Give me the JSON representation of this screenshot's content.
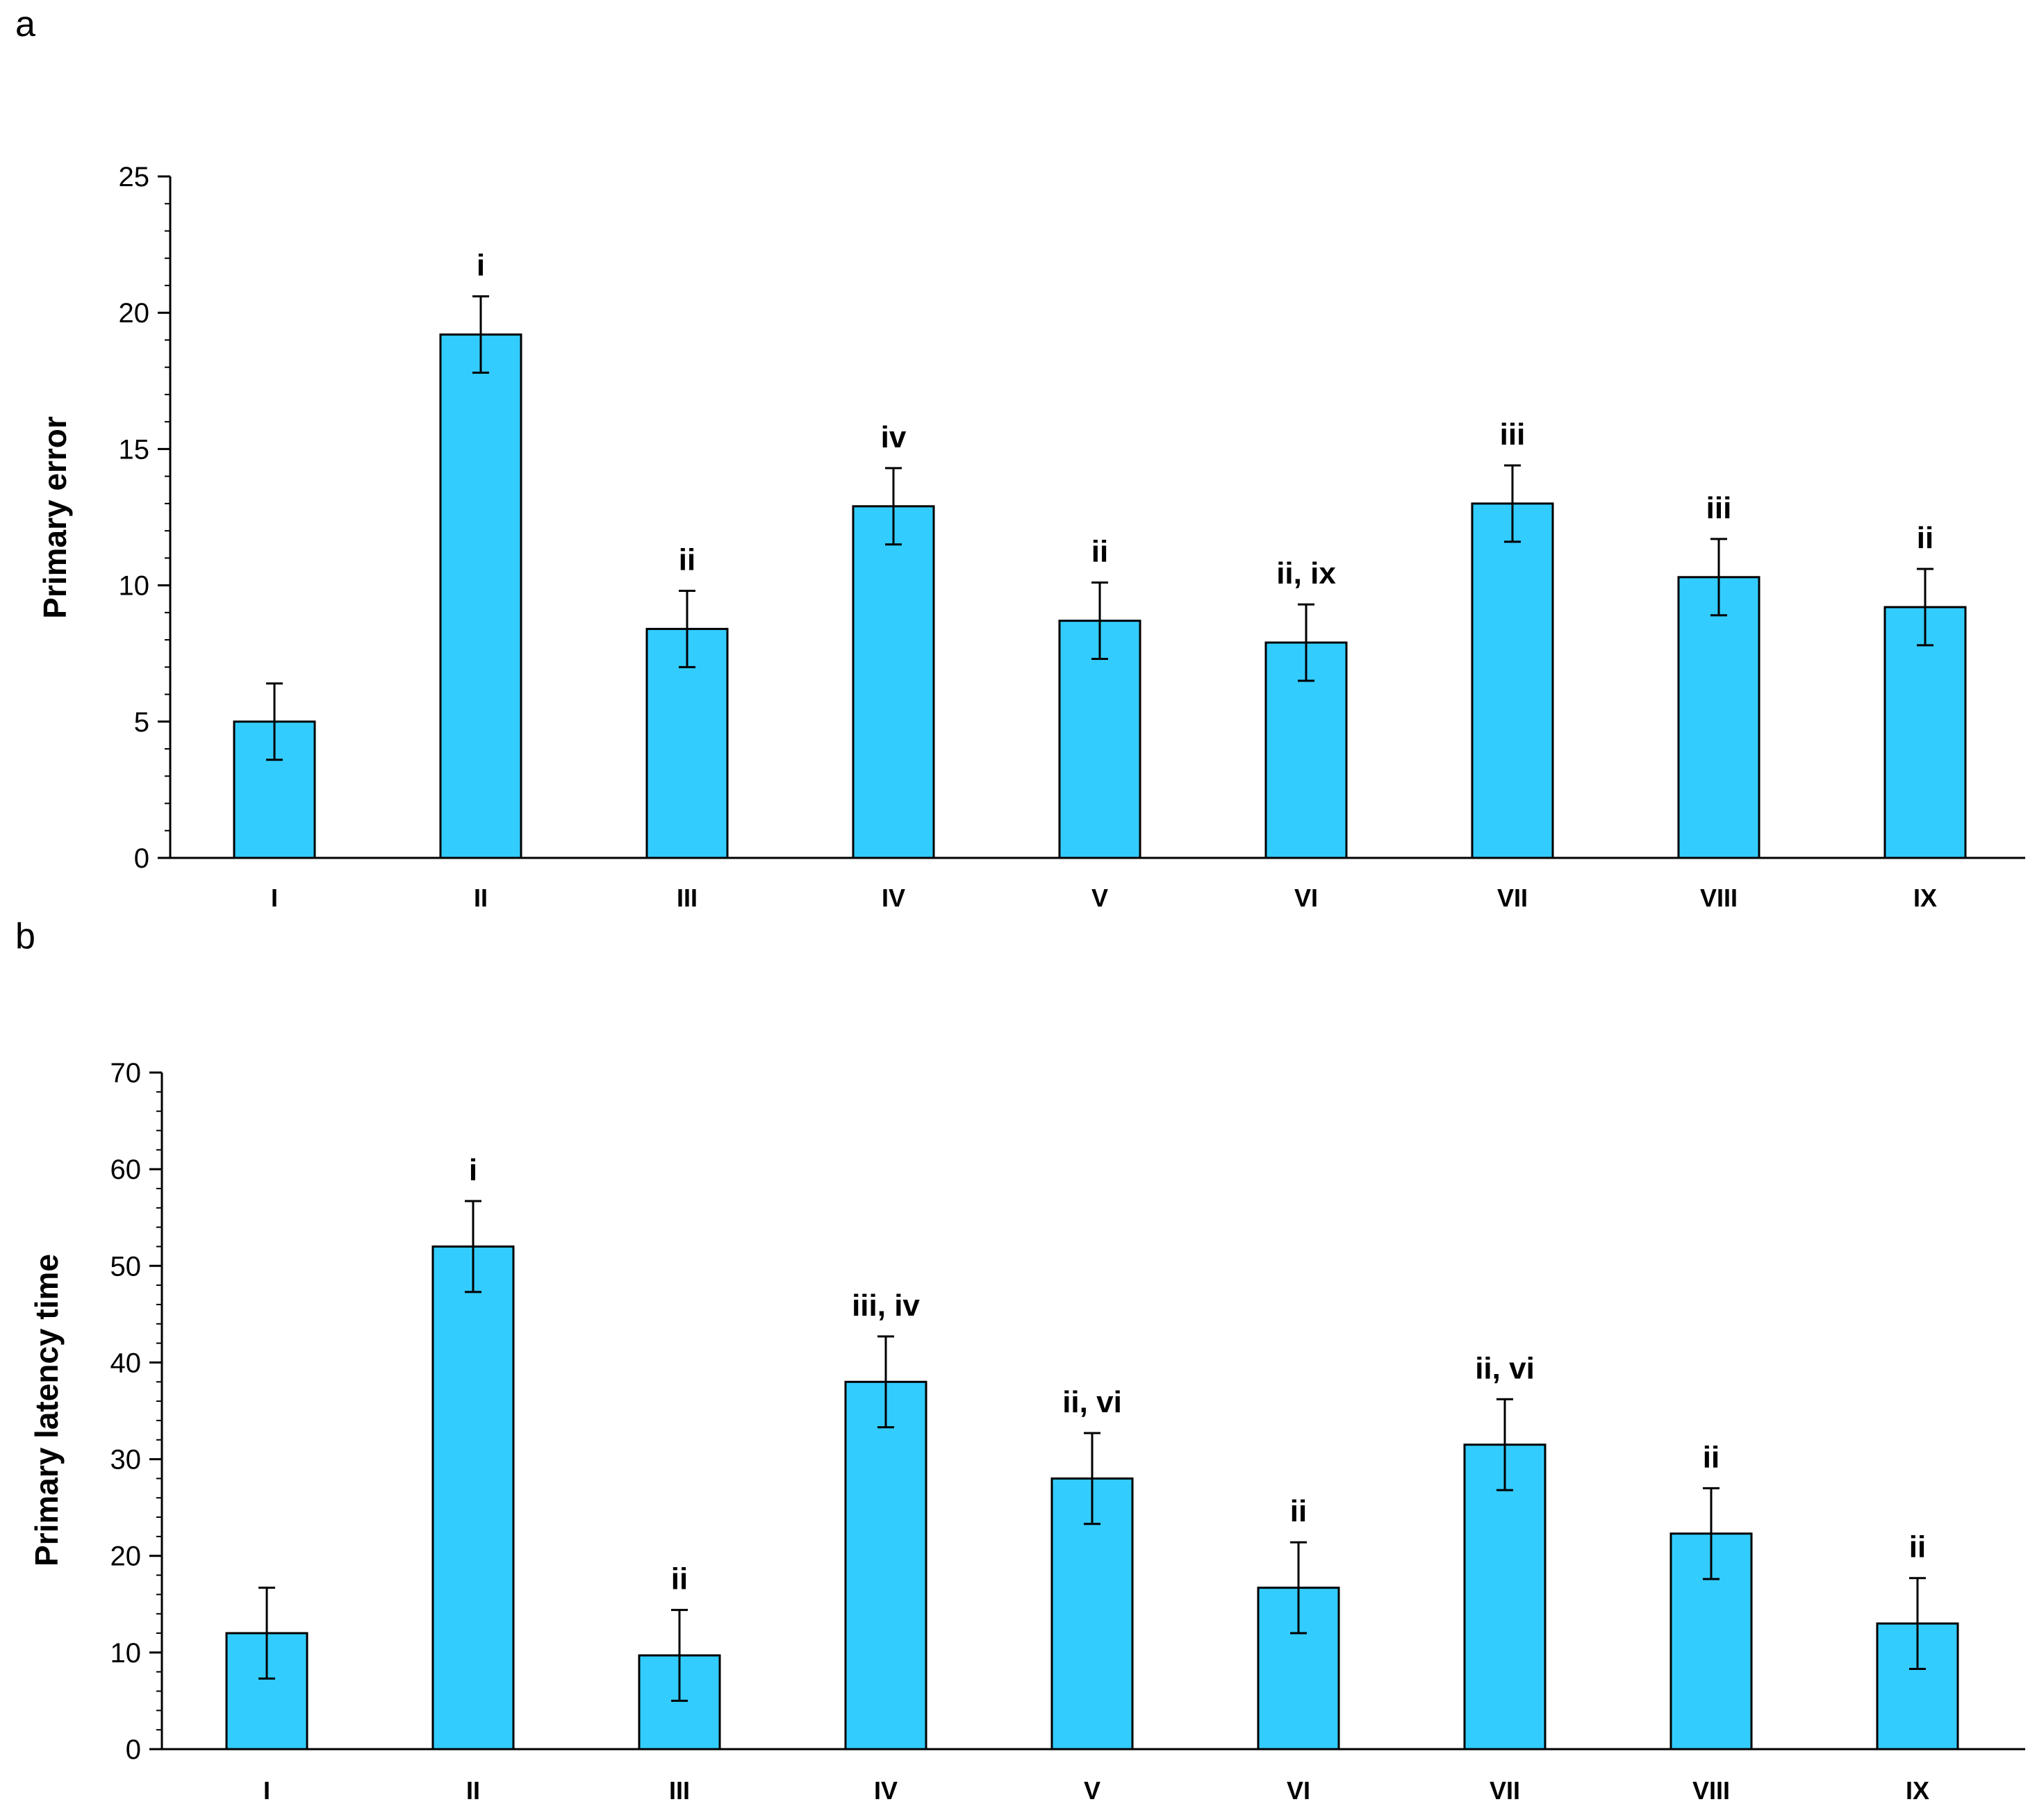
{
  "chart_data": [
    {
      "panel": "a",
      "type": "bar",
      "ylabel": "Primary error",
      "xlabel": "",
      "ylim": [
        0,
        25
      ],
      "yticks": [
        0,
        5,
        10,
        15,
        20,
        25
      ],
      "minor_tick_step": 1,
      "categories": [
        "I",
        "II",
        "III",
        "IV",
        "V",
        "VI",
        "VII",
        "VIII",
        "IX"
      ],
      "values": [
        5.0,
        19.2,
        8.4,
        12.9,
        8.7,
        7.9,
        13.0,
        10.3,
        9.2
      ],
      "errors": [
        1.4,
        1.4,
        1.4,
        1.4,
        1.4,
        1.4,
        1.4,
        1.4,
        1.4
      ],
      "annotations": [
        "",
        "i",
        "ii",
        "iv",
        "ii",
        "ii, ix",
        "iii",
        "iii",
        "ii"
      ],
      "bar_color": "#33ccff"
    },
    {
      "panel": "b",
      "type": "bar",
      "ylabel": "Primary latency time",
      "xlabel": "",
      "ylim": [
        0,
        70
      ],
      "yticks": [
        0,
        10,
        20,
        30,
        40,
        50,
        60,
        70
      ],
      "minor_tick_step": 2,
      "categories": [
        "I",
        "II",
        "III",
        "IV",
        "V",
        "VI",
        "VII",
        "VIII",
        "IX"
      ],
      "values": [
        12.0,
        52.0,
        9.7,
        38.0,
        28.0,
        16.7,
        31.5,
        22.3,
        13.0
      ],
      "errors": [
        4.7,
        4.7,
        4.7,
        4.7,
        4.7,
        4.7,
        4.7,
        4.7,
        4.7
      ],
      "annotations": [
        "",
        "i",
        "ii",
        "iii, iv",
        "ii, vi",
        "ii",
        "ii, vi",
        "ii",
        "ii"
      ],
      "bar_color": "#33ccff"
    }
  ]
}
